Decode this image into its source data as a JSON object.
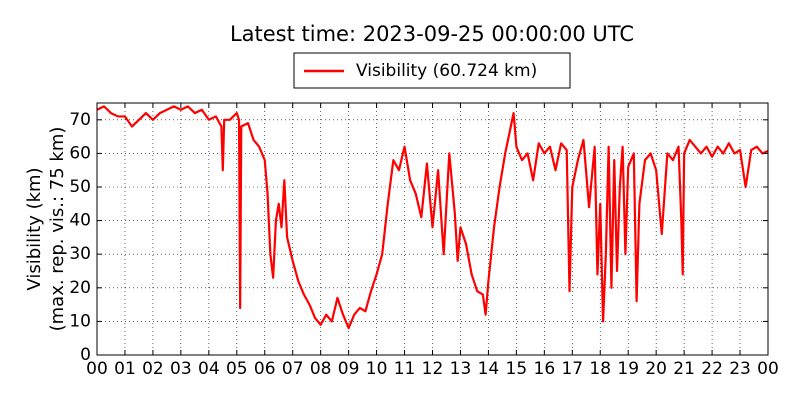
{
  "chart_data": {
    "type": "line",
    "title": "Latest time: 2023-09-25 00:00:00 UTC",
    "ylabel": [
      "Visibility (km)",
      "(max. rep. vis.: 75 km)"
    ],
    "grid": true,
    "legend": "upper center",
    "xlim": [
      0,
      24
    ],
    "ylim": [
      0,
      75
    ],
    "yticks": [
      0,
      10,
      20,
      30,
      40,
      50,
      60,
      70
    ],
    "xticks": [
      {
        "value": 0,
        "label": "00"
      },
      {
        "value": 1,
        "label": "01"
      },
      {
        "value": 2,
        "label": "02"
      },
      {
        "value": 3,
        "label": "03"
      },
      {
        "value": 4,
        "label": "04"
      },
      {
        "value": 5,
        "label": "05"
      },
      {
        "value": 6,
        "label": "06"
      },
      {
        "value": 7,
        "label": "07"
      },
      {
        "value": 8,
        "label": "08"
      },
      {
        "value": 9,
        "label": "09"
      },
      {
        "value": 10,
        "label": "10"
      },
      {
        "value": 11,
        "label": "11"
      },
      {
        "value": 12,
        "label": "12"
      },
      {
        "value": 13,
        "label": "13"
      },
      {
        "value": 14,
        "label": "14"
      },
      {
        "value": 15,
        "label": "15"
      },
      {
        "value": 16,
        "label": "16"
      },
      {
        "value": 17,
        "label": "17"
      },
      {
        "value": 18,
        "label": "18"
      },
      {
        "value": 19,
        "label": "19"
      },
      {
        "value": 20,
        "label": "20"
      },
      {
        "value": 21,
        "label": "21"
      },
      {
        "value": 22,
        "label": "22"
      },
      {
        "value": 23,
        "label": "23"
      },
      {
        "value": 24,
        "label": "00"
      }
    ],
    "x": [
      0,
      0.25,
      0.5,
      0.75,
      1,
      1.25,
      1.5,
      1.75,
      2,
      2.25,
      2.5,
      2.75,
      3,
      3.25,
      3.5,
      3.75,
      4,
      4.25,
      4.45,
      4.5,
      4.55,
      4.75,
      5,
      5.08,
      5.12,
      5.16,
      5.4,
      5.6,
      5.8,
      6,
      6.1,
      6.2,
      6.3,
      6.4,
      6.5,
      6.6,
      6.7,
      6.8,
      7,
      7.2,
      7.4,
      7.6,
      7.8,
      8,
      8.2,
      8.4,
      8.6,
      8.8,
      9,
      9.2,
      9.4,
      9.6,
      9.8,
      10,
      10.2,
      10.4,
      10.6,
      10.8,
      11,
      11.2,
      11.4,
      11.6,
      11.8,
      12,
      12.2,
      12.4,
      12.6,
      12.8,
      12.9,
      13,
      13.2,
      13.4,
      13.6,
      13.8,
      13.9,
      14,
      14.2,
      14.4,
      14.6,
      14.9,
      15,
      15.2,
      15.4,
      15.6,
      15.8,
      16,
      16.2,
      16.4,
      16.6,
      16.8,
      16.9,
      17,
      17.2,
      17.4,
      17.6,
      17.8,
      17.9,
      18,
      18.1,
      18.2,
      18.3,
      18.4,
      18.5,
      18.6,
      18.7,
      18.8,
      18.9,
      19,
      19.2,
      19.3,
      19.4,
      19.6,
      19.8,
      20,
      20.2,
      20.4,
      20.6,
      20.8,
      20.9,
      20.95,
      21,
      21.2,
      21.4,
      21.6,
      21.8,
      22,
      22.2,
      22.4,
      22.6,
      22.8,
      23,
      23.2,
      23.4,
      23.6,
      23.8,
      24
    ],
    "series": [
      {
        "name": "Visibility (60.724 km)",
        "color": "#ff0000",
        "values": [
          73,
          74,
          72,
          71,
          71,
          68,
          70,
          72,
          70,
          72,
          73,
          74,
          73,
          74,
          72,
          73,
          70,
          71,
          68,
          55,
          70,
          70,
          72,
          70,
          14,
          68,
          69,
          64,
          62,
          58,
          48,
          30,
          23,
          40,
          45,
          38,
          52,
          35,
          28,
          22,
          18,
          15,
          11,
          9,
          12,
          10,
          17,
          12,
          8,
          12,
          14,
          13,
          19,
          24,
          30,
          45,
          58,
          55,
          62,
          52,
          48,
          41,
          57,
          38,
          55,
          30,
          60,
          42,
          28,
          38,
          33,
          24,
          19,
          18,
          12,
          22,
          38,
          50,
          60,
          72,
          62,
          58,
          60,
          52,
          63,
          60,
          62,
          55,
          63,
          61,
          19,
          50,
          58,
          64,
          44,
          62,
          24,
          45,
          10,
          30,
          62,
          20,
          58,
          25,
          50,
          62,
          30,
          56,
          60,
          16,
          45,
          58,
          60,
          55,
          36,
          60,
          58,
          62,
          40,
          24,
          60,
          64,
          62,
          60,
          62,
          59,
          62,
          60,
          63,
          60,
          61,
          50,
          61,
          62,
          60,
          60.724
        ]
      }
    ]
  }
}
